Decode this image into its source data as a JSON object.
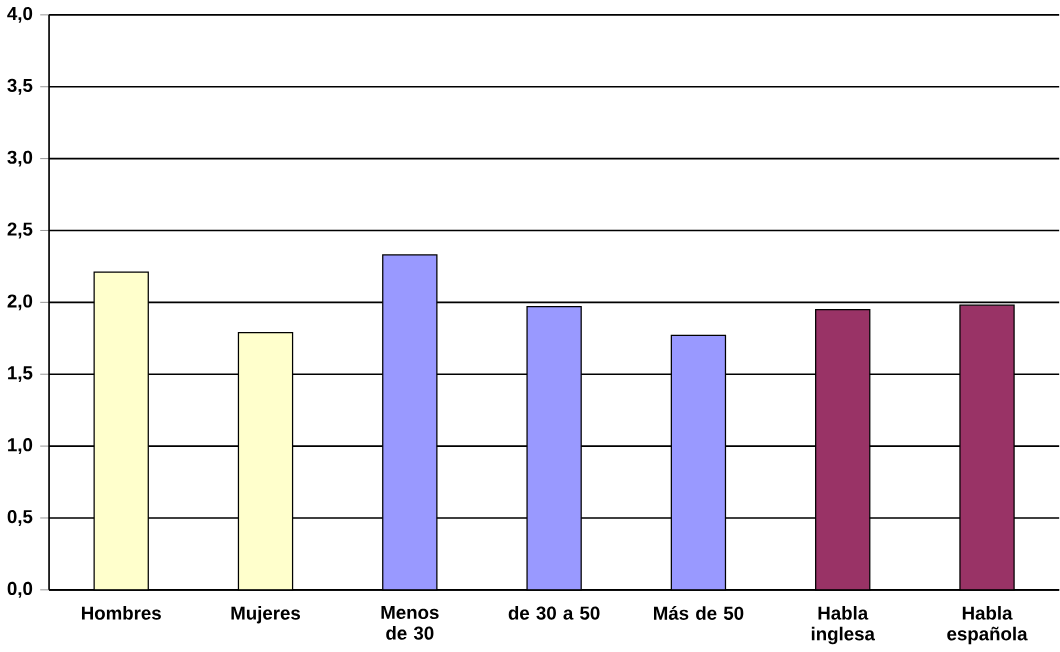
{
  "chart_data": {
    "type": "bar",
    "categories": [
      "Hombres",
      "Mujeres",
      "Menos de 30",
      "de 30 a 50",
      "Más de 50",
      "Habla inglesa",
      "Habla española"
    ],
    "values": [
      2.21,
      1.79,
      2.33,
      1.97,
      1.77,
      1.95,
      1.98
    ],
    "colors": [
      "#ffffcc",
      "#ffffcc",
      "#9999ff",
      "#9999ff",
      "#9999ff",
      "#993366",
      "#993366"
    ],
    "ylim": [
      0,
      4
    ],
    "yticks": [
      {
        "value": 0,
        "label": "0,0"
      },
      {
        "value": 0.5,
        "label": "0,5"
      },
      {
        "value": 1,
        "label": "1,0"
      },
      {
        "value": 1.5,
        "label": "1,5"
      },
      {
        "value": 2,
        "label": "2,0"
      },
      {
        "value": 2.5,
        "label": "2,5"
      },
      {
        "value": 3,
        "label": "3,0"
      },
      {
        "value": 3.5,
        "label": "3,5"
      },
      {
        "value": 4,
        "label": "4,0"
      }
    ],
    "grid": "y"
  }
}
